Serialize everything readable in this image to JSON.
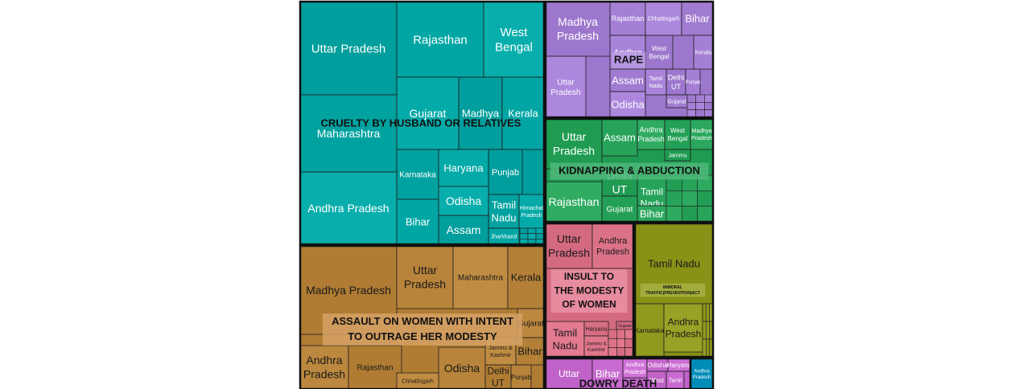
{
  "chart_data": {
    "type": "treemap",
    "title": "",
    "groups": [
      {
        "name": "CRUELTY BY HUSBAND OR RELATIVES",
        "color": "#00a6a4",
        "label_bg": "",
        "cells": [
          {
            "label": "Uttar Pradesh"
          },
          {
            "label": "Rajasthan"
          },
          {
            "label": "West Bengal"
          },
          {
            "label": "Maharashtra"
          },
          {
            "label": "Gujarat"
          },
          {
            "label": "Madhya"
          },
          {
            "label": "Kerala"
          },
          {
            "label": "Andhra Pradesh"
          },
          {
            "label": "Karnataka"
          },
          {
            "label": "Haryana"
          },
          {
            "label": "Punjab"
          },
          {
            "label": "Bihar"
          },
          {
            "label": "Odisha"
          },
          {
            "label": "Tamil Nadu"
          },
          {
            "label": "Himachal Pradesh"
          },
          {
            "label": "Assam"
          },
          {
            "label": "Jharkhand"
          }
        ]
      },
      {
        "name": "ASSAULT ON WOMEN WITH INTENT TO OUTRAGE HER MODESTY",
        "color": "#b8843b",
        "label_bg": "#d6a266",
        "cells": [
          {
            "label": "Madhya Pradesh"
          },
          {
            "label": "Uttar Pradesh"
          },
          {
            "label": "Maharashtra"
          },
          {
            "label": "Kerala"
          },
          {
            "label": "Andhra Pradesh"
          },
          {
            "label": "Rajasthan"
          },
          {
            "label": "Odisha"
          },
          {
            "label": "Jammu & Kashmir"
          },
          {
            "label": "Bihar"
          },
          {
            "label": "Gujarat"
          },
          {
            "label": "Delhi UT"
          },
          {
            "label": "Punjab"
          },
          {
            "label": "Chhattisgarh"
          }
        ]
      },
      {
        "name": "RAPE",
        "color": "#a57fd5",
        "label_bg": "#b79ae0",
        "cells": [
          {
            "label": "Madhya Pradesh"
          },
          {
            "label": "Rajasthan"
          },
          {
            "label": "Chhattisgarh"
          },
          {
            "label": "Bihar"
          },
          {
            "label": "Andhra"
          },
          {
            "label": "West Bengal"
          },
          {
            "label": "Kerala"
          },
          {
            "label": "Uttar Pradesh"
          },
          {
            "label": "Assam"
          },
          {
            "label": "Tamil Nadu"
          },
          {
            "label": "Delhi UT"
          },
          {
            "label": "Punjab"
          },
          {
            "label": "Odisha"
          },
          {
            "label": "Gujarat"
          }
        ]
      },
      {
        "name": "KIDNAPPING & ABDUCTION",
        "color": "#27a45a",
        "label_bg": "#4fb87a",
        "cells": [
          {
            "label": "Uttar Pradesh"
          },
          {
            "label": "Assam"
          },
          {
            "label": "Andhra Pradesh"
          },
          {
            "label": "West Bengal"
          },
          {
            "label": "Madhya Pradesh"
          },
          {
            "label": "Delhi UT"
          },
          {
            "label": "Tamil Nadu"
          },
          {
            "label": "Rajasthan"
          },
          {
            "label": "Gujarat"
          },
          {
            "label": "Bihar"
          },
          {
            "label": "Jammu"
          }
        ]
      },
      {
        "name": "INSULT TO THE MODESTY OF WOMEN",
        "color": "#dc7288",
        "label_bg": "#ea90a3",
        "cells": [
          {
            "label": "Uttar Pradesh"
          },
          {
            "label": "Andhra Pradesh"
          },
          {
            "label": "Tamil Nadu"
          },
          {
            "label": "Haryana"
          },
          {
            "label": "Jammu & Kashmir"
          },
          {
            "label": "Gujarat"
          }
        ]
      },
      {
        "name": "IMMORAL TRAFFIC(PREVENTION)ACT",
        "color": "#8f9a1e",
        "label_bg": "#a7b043",
        "cells": [
          {
            "label": "Tamil Nadu"
          },
          {
            "label": "Karnataka"
          },
          {
            "label": "Andhra Pradesh"
          }
        ]
      },
      {
        "name": "DOWRY DEATH",
        "color": "#c86ad0",
        "label_bg": "",
        "cells": [
          {
            "label": "Uttar"
          },
          {
            "label": "Bihar"
          },
          {
            "label": "Andhra Pradesh"
          },
          {
            "label": "Odisha"
          },
          {
            "label": "Haryana"
          },
          {
            "label": "West"
          },
          {
            "label": "Tamil"
          }
        ]
      },
      {
        "name": "",
        "color": "#0094c0",
        "label_bg": "",
        "cells": [
          {
            "label": "Andhra Pradesh"
          }
        ]
      }
    ]
  }
}
